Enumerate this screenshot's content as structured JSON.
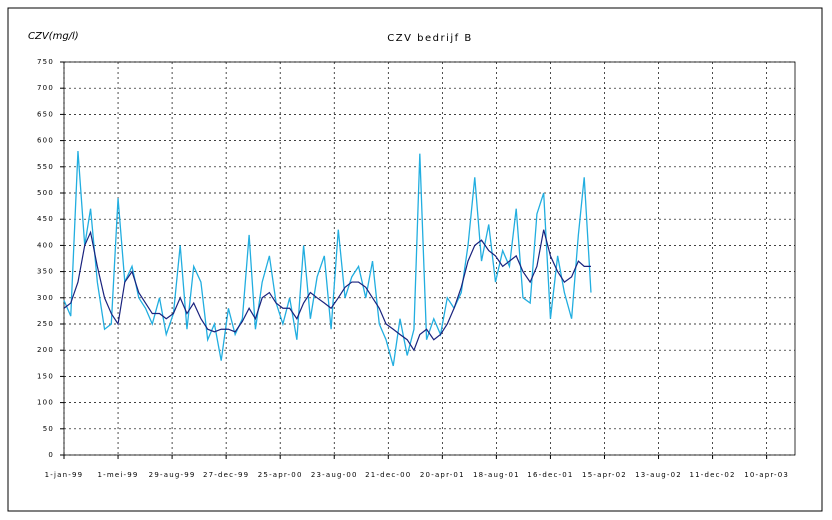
{
  "chart_data": {
    "type": "line",
    "title": "CZV bedrijf B",
    "y_label": "CZV(mg/l)",
    "x": [
      "1999-01-01",
      "1999-01-16",
      "1999-02-01",
      "1999-02-16",
      "1999-03-01",
      "1999-03-16",
      "1999-04-01",
      "1999-04-16",
      "1999-05-01",
      "1999-05-16",
      "1999-06-01",
      "1999-06-16",
      "1999-07-01",
      "1999-07-16",
      "1999-08-01",
      "1999-08-16",
      "1999-09-01",
      "1999-09-16",
      "1999-10-01",
      "1999-10-16",
      "1999-11-01",
      "1999-11-16",
      "1999-12-01",
      "1999-12-16",
      "2000-01-01",
      "2000-01-16",
      "2000-02-01",
      "2000-02-16",
      "2000-03-01",
      "2000-03-16",
      "2000-04-01",
      "2000-04-16",
      "2000-05-01",
      "2000-05-16",
      "2000-06-01",
      "2000-06-16",
      "2000-07-01",
      "2000-07-16",
      "2000-08-01",
      "2000-08-16",
      "2000-09-01",
      "2000-09-16",
      "2000-10-01",
      "2000-10-16",
      "2000-11-01",
      "2000-11-16",
      "2000-12-01",
      "2000-12-16",
      "2001-01-01",
      "2001-01-16",
      "2001-02-01",
      "2001-02-16",
      "2001-03-01",
      "2001-03-16",
      "2001-04-01",
      "2001-04-16",
      "2001-05-01",
      "2001-05-16",
      "2001-06-01",
      "2001-06-16",
      "2001-07-01",
      "2001-07-16",
      "2001-08-01",
      "2001-08-16",
      "2001-09-01",
      "2001-09-16",
      "2001-10-01",
      "2001-10-16",
      "2001-11-01",
      "2001-11-16",
      "2001-12-01",
      "2001-12-16",
      "2002-01-01",
      "2002-01-16",
      "2002-02-01",
      "2002-02-16",
      "2002-03-01",
      "2002-03-16"
    ],
    "series": [
      {
        "color": "#22aee0",
        "values": [
          295,
          265,
          580,
          400,
          470,
          330,
          240,
          250,
          490,
          330,
          360,
          300,
          280,
          250,
          300,
          230,
          270,
          400,
          240,
          360,
          330,
          220,
          250,
          180,
          280,
          230,
          260,
          420,
          240,
          330,
          380,
          290,
          250,
          300,
          220,
          400,
          260,
          340,
          380,
          240,
          430,
          300,
          340,
          360,
          300,
          370,
          250,
          220,
          170,
          260,
          190,
          240,
          575,
          220,
          260,
          230,
          300,
          280,
          310,
          400,
          530,
          370,
          440,
          330,
          390,
          360,
          470,
          300,
          290,
          460,
          500,
          260,
          380,
          310,
          260,
          420,
          530,
          310
        ]
      },
      {
        "color": "#1a237e",
        "values": [
          280,
          290,
          330,
          400,
          425,
          360,
          300,
          270,
          250,
          330,
          350,
          310,
          290,
          270,
          270,
          260,
          270,
          300,
          270,
          290,
          260,
          240,
          235,
          240,
          240,
          235,
          255,
          280,
          260,
          300,
          310,
          290,
          280,
          280,
          260,
          290,
          310,
          300,
          290,
          280,
          300,
          320,
          330,
          330,
          320,
          300,
          280,
          250,
          240,
          230,
          220,
          200,
          230,
          240,
          220,
          230,
          250,
          280,
          320,
          370,
          400,
          410,
          390,
          380,
          360,
          370,
          380,
          350,
          330,
          360,
          430,
          380,
          350,
          330,
          340,
          370,
          360,
          360
        ]
      }
    ],
    "xlim": [
      "1999-01-01",
      "2003-06-12"
    ],
    "xticks": [
      {
        "value": "1999-01-01",
        "label": "1-jan-99"
      },
      {
        "value": "1999-05-01",
        "label": "1-mei-99"
      },
      {
        "value": "1999-08-29",
        "label": "29-aug-99"
      },
      {
        "value": "1999-12-27",
        "label": "27-dec-99"
      },
      {
        "value": "2000-04-25",
        "label": "25-apr-00"
      },
      {
        "value": "2000-08-23",
        "label": "23-aug-00"
      },
      {
        "value": "2000-12-21",
        "label": "21-dec-00"
      },
      {
        "value": "2001-04-20",
        "label": "20-apr-01"
      },
      {
        "value": "2001-08-18",
        "label": "18-aug-01"
      },
      {
        "value": "2001-12-16",
        "label": "16-dec-01"
      },
      {
        "value": "2002-04-15",
        "label": "15-apr-02"
      },
      {
        "value": "2002-08-13",
        "label": "13-aug-02"
      },
      {
        "value": "2002-12-11",
        "label": "11-dec-02"
      },
      {
        "value": "2003-04-10",
        "label": "10-apr-03"
      }
    ],
    "ylim": [
      0,
      750
    ],
    "yticks": [
      0,
      50,
      100,
      150,
      200,
      250,
      300,
      350,
      400,
      450,
      500,
      550,
      600,
      650,
      700,
      750
    ],
    "grid": true
  }
}
